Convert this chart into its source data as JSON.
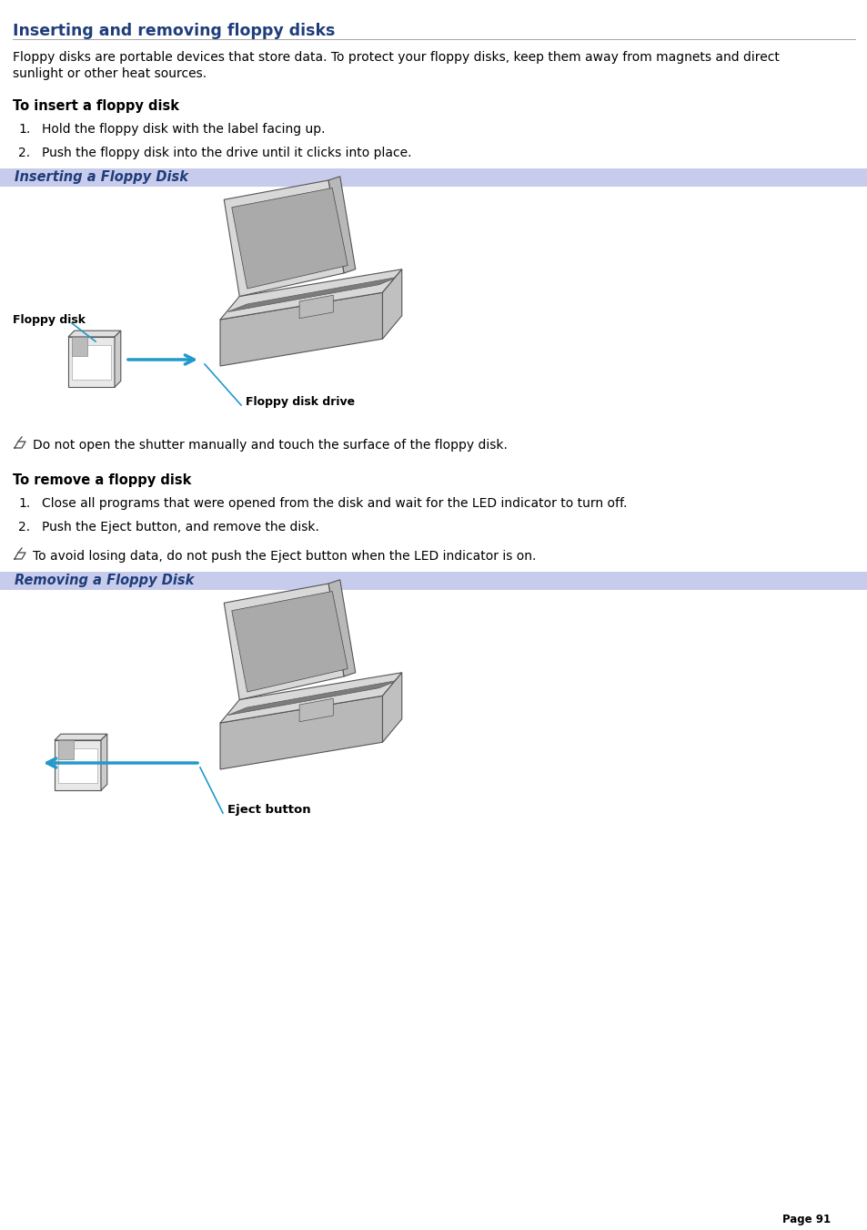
{
  "title": "Inserting and removing floppy disks",
  "title_color": "#1f3d7a",
  "bg_color": "#ffffff",
  "body_text_color": "#000000",
  "section_bg_color": "#c8ccec",
  "section_text_color": "#1f3d7a",
  "body_font_size": 10.0,
  "title_font_size": 12.5,
  "section_header_font_size": 10.5,
  "subheading_font_size": 10.5,
  "intro_text_line1": "Floppy disks are portable devices that store data. To protect your floppy disks, keep them away from magnets and direct",
  "intro_text_line2": "sunlight or other heat sources.",
  "insert_heading": "To insert a floppy disk",
  "insert_step1": "Hold the floppy disk with the label facing up.",
  "insert_step2": "Push the floppy disk into the drive until it clicks into place.",
  "insert_section_label": "Inserting a Floppy Disk",
  "insert_note": "Do not open the shutter manually and touch the surface of the floppy disk.",
  "remove_heading": "To remove a floppy disk",
  "remove_step1": "Close all programs that were opened from the disk and wait for the LED indicator to turn off.",
  "remove_step2": "Push the Eject button, and remove the disk.",
  "remove_section_label": "Removing a Floppy Disk",
  "remove_note": "To avoid losing data, do not push the Eject button when the LED indicator is on.",
  "label_floppy_disk": "Floppy disk",
  "label_floppy_drive": "Floppy disk drive",
  "label_eject_button": "Eject button",
  "page_number": "Page 91",
  "laptop_fill": "#d8d8d8",
  "laptop_fill_dark": "#b8b8b8",
  "laptop_stroke": "#555555",
  "screen_fill": "#c8c8c8",
  "screen_inner_fill": "#aaaaaa",
  "floppy_fill": "#e0e0e0",
  "arrow_color": "#2299cc",
  "line_color": "#2299cc"
}
